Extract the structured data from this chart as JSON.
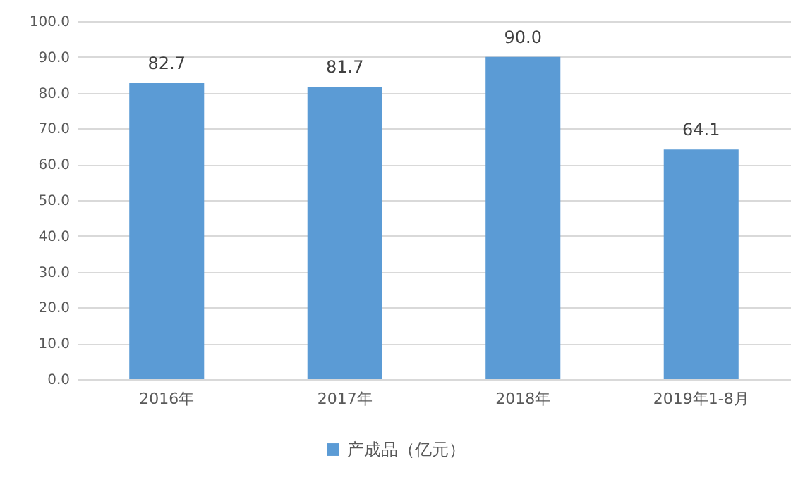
{
  "chart_data": {
    "type": "bar",
    "categories": [
      "2016年",
      "2017年",
      "2018年",
      "2019年1-8月"
    ],
    "series": [
      {
        "name": "产成品（亿元）",
        "color": "#5b9bd5",
        "values": [
          82.7,
          81.7,
          90.0,
          64.1
        ],
        "value_labels": [
          "82.7",
          "81.7",
          "90.0",
          "64.1"
        ]
      }
    ],
    "ylim": [
      0,
      100
    ],
    "yticks": [
      {
        "value": 0,
        "label": "0.0"
      },
      {
        "value": 10,
        "label": "10.0"
      },
      {
        "value": 20,
        "label": "20.0"
      },
      {
        "value": 30,
        "label": "30.0"
      },
      {
        "value": 40,
        "label": "40.0"
      },
      {
        "value": 50,
        "label": "50.0"
      },
      {
        "value": 60,
        "label": "60.0"
      },
      {
        "value": 70,
        "label": "70.0"
      },
      {
        "value": 80,
        "label": "80.0"
      },
      {
        "value": 90,
        "label": "90.0"
      },
      {
        "value": 100,
        "label": "100.0"
      }
    ],
    "grid": "y",
    "legend": "bottom"
  }
}
